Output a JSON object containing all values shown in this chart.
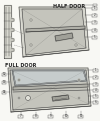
{
  "bg_color": "#f8f8f4",
  "line_color": "#404040",
  "fill_light": "#d8d8d0",
  "fill_mid": "#c4c4bc",
  "fill_dark": "#b0b0a8",
  "fill_inner": "#e0e0d8",
  "half_door_label": "HALF DOOR",
  "full_door_label": "FULL DOOR",
  "text_color": "#222222",
  "callout_fill": "#f0f0ec",
  "lw": 0.4
}
